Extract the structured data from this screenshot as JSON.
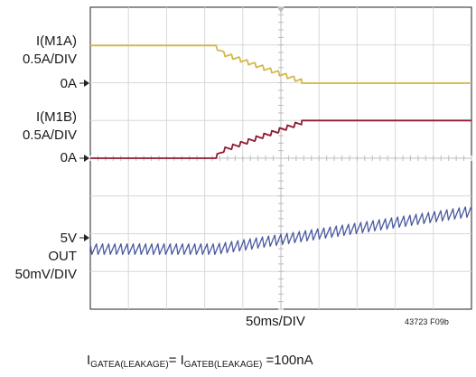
{
  "chart_data": {
    "type": "line",
    "title": "",
    "grid": true,
    "divisions": {
      "x": 10,
      "y": 8
    },
    "timebase_label": "50ms/DIV",
    "figure_id": "43723 F09b",
    "caption": {
      "p1": "I",
      "s1": "GATEA(LEAKAGE)",
      "p2": "= I",
      "s2": "GATEB(LEAKAGE)",
      "p3": " =100nA"
    },
    "channels": [
      {
        "name": "I(M1A)",
        "scale_label": "0.5A/DIV",
        "zero_label": "0A",
        "color": "#d4b84a",
        "units": "A",
        "x_div": [
          0,
          3.3,
          3.3,
          5.55,
          5.55,
          10
        ],
        "y": [
          0.5,
          0.5,
          0.45,
          0.05,
          0,
          0
        ]
      },
      {
        "name": "I(M1B)",
        "scale_label": "0.5A/DIV",
        "zero_label": "0A",
        "color": "#8e1b2e",
        "units": "A",
        "x_div": [
          0,
          3.3,
          3.3,
          5.55,
          5.55,
          10
        ],
        "y": [
          0,
          0,
          0.05,
          0.45,
          0.5,
          0.5
        ]
      },
      {
        "name": "OUT",
        "scale_label": "50mV/DIV",
        "zero_label": "5V",
        "color": "#4a5aa0",
        "units": "mV",
        "x_div": [
          0,
          3.3,
          10
        ],
        "y": [
          -15,
          -15,
          35
        ]
      }
    ]
  }
}
